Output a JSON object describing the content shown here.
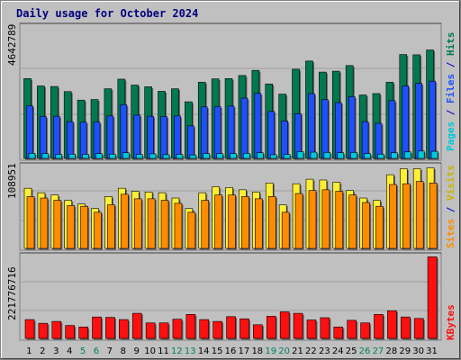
{
  "title": "Daily usage for October 2024",
  "colors": {
    "pages": "#00c8dc",
    "files": "#1e50ff",
    "hits": "#007850",
    "sites": "#ff8c00",
    "visits": "#ffee33",
    "kbytes": "#ff1010",
    "weekend": "#008060",
    "weekday": "#000000",
    "legend_separator": "#0000cc"
  },
  "chart_data": [
    {
      "type": "bar",
      "panel": "hits-files-pages",
      "ymax_label": "4642789",
      "ylim": [
        0,
        4642789
      ],
      "legend": [
        "Pages",
        "Files",
        "Hits"
      ],
      "categories": [
        "1",
        "2",
        "3",
        "4",
        "5",
        "6",
        "7",
        "8",
        "9",
        "10",
        "11",
        "12",
        "13",
        "14",
        "15",
        "16",
        "17",
        "18",
        "19",
        "20",
        "21",
        "22",
        "23",
        "24",
        "25",
        "26",
        "27",
        "28",
        "29",
        "30",
        "31"
      ],
      "series": [
        {
          "name": "Hits",
          "values": [
            2820000,
            2560000,
            2540000,
            2360000,
            2060000,
            2080000,
            2460000,
            2800000,
            2590000,
            2530000,
            2370000,
            2460000,
            2000000,
            2690000,
            2810000,
            2820000,
            2930000,
            3110000,
            2630000,
            2270000,
            3150000,
            3440000,
            3050000,
            3080000,
            3280000,
            2240000,
            2290000,
            2690000,
            3670000,
            3660000,
            3830000
          ]
        },
        {
          "name": "Files",
          "values": [
            1860000,
            1480000,
            1490000,
            1300000,
            1280000,
            1280000,
            1500000,
            1900000,
            1530000,
            1490000,
            1480000,
            1500000,
            1150000,
            1820000,
            1830000,
            1850000,
            2130000,
            2300000,
            1660000,
            1320000,
            1580000,
            2290000,
            2080000,
            1970000,
            2180000,
            1300000,
            1240000,
            2040000,
            2560000,
            2650000,
            2730000
          ]
        },
        {
          "name": "Pages",
          "values": [
            180000,
            170000,
            140000,
            150000,
            140000,
            170000,
            150000,
            200000,
            140000,
            160000,
            130000,
            140000,
            120000,
            170000,
            170000,
            170000,
            180000,
            200000,
            130000,
            140000,
            240000,
            220000,
            210000,
            200000,
            210000,
            170000,
            150000,
            200000,
            230000,
            260000,
            250000
          ]
        }
      ]
    },
    {
      "type": "bar",
      "panel": "visits-sites",
      "ymax_label": "108951",
      "ylim": [
        0,
        108951
      ],
      "legend": [
        "Sites",
        "Visits"
      ],
      "categories": [
        "1",
        "2",
        "3",
        "4",
        "5",
        "6",
        "7",
        "8",
        "9",
        "10",
        "11",
        "12",
        "13",
        "14",
        "15",
        "16",
        "17",
        "18",
        "19",
        "20",
        "21",
        "22",
        "23",
        "24",
        "25",
        "26",
        "27",
        "28",
        "29",
        "30",
        "31"
      ],
      "series": [
        {
          "name": "Visits",
          "values": [
            80000,
            74000,
            71000,
            64000,
            59000,
            53000,
            69000,
            80000,
            76000,
            75000,
            74000,
            67000,
            53000,
            74000,
            82000,
            81000,
            78000,
            75000,
            87000,
            58000,
            86000,
            92000,
            91000,
            88000,
            77000,
            67000,
            64000,
            98000,
            106000,
            106000,
            107000
          ]
        },
        {
          "name": "Sites",
          "values": [
            69000,
            67000,
            64000,
            57000,
            56000,
            48000,
            58000,
            72000,
            66000,
            66000,
            64000,
            60000,
            48000,
            64000,
            71000,
            71000,
            69000,
            66000,
            69000,
            48000,
            73000,
            77000,
            78000,
            76000,
            71000,
            61000,
            56000,
            85000,
            86000,
            89000,
            87000
          ]
        }
      ]
    },
    {
      "type": "bar",
      "panel": "kbytes",
      "ymax_label": "221776716",
      "ylim": [
        0,
        221776716
      ],
      "legend": [
        "KBytes"
      ],
      "categories": [
        "1",
        "2",
        "3",
        "4",
        "5",
        "6",
        "7",
        "8",
        "9",
        "10",
        "11",
        "12",
        "13",
        "14",
        "15",
        "16",
        "17",
        "18",
        "19",
        "20",
        "21",
        "22",
        "23",
        "24",
        "25",
        "26",
        "27",
        "28",
        "29",
        "30",
        "31"
      ],
      "series": [
        {
          "name": "KBytes",
          "values": [
            51000000,
            41000000,
            46000000,
            35000000,
            31000000,
            58000000,
            57000000,
            51000000,
            68000000,
            42000000,
            42000000,
            52000000,
            65000000,
            51000000,
            46000000,
            59000000,
            53000000,
            37000000,
            60000000,
            72000000,
            68000000,
            50000000,
            56000000,
            31000000,
            49000000,
            42000000,
            65000000,
            75000000,
            58000000,
            54000000,
            221000000
          ]
        }
      ]
    }
  ]
}
